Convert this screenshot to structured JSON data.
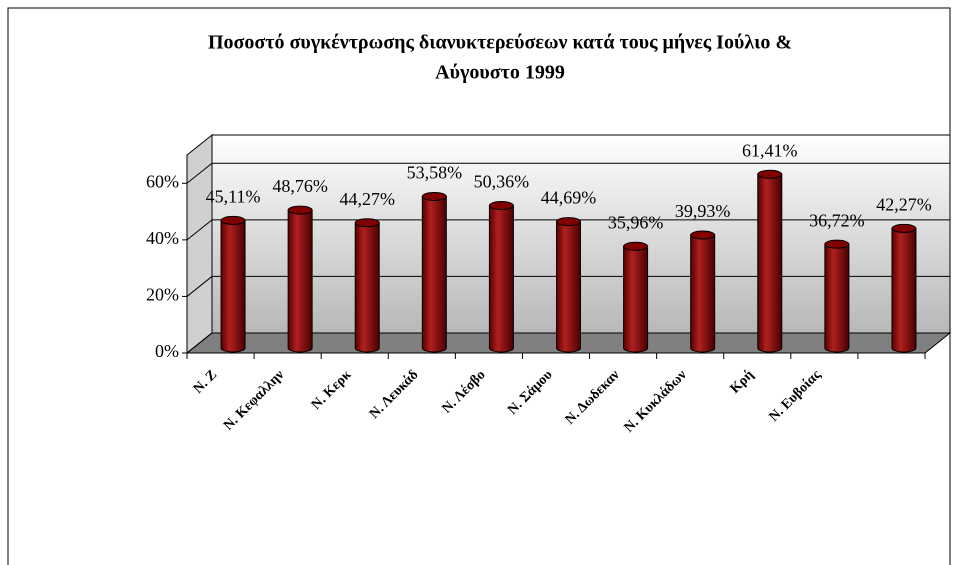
{
  "chart_data": {
    "type": "bar",
    "title": [
      "Ποσοστό συγκέντρωσης διανυκτερεύσεων  κατά τους μήνες Ιούλιο &",
      "Αύγουστο 1999"
    ],
    "categories": [
      "Ν. Ζ",
      "Ν. Κεφαλλην",
      "Ν. Κερκ",
      "Ν. Λευκάδ",
      "Ν. Λέσβο",
      "Ν. Σάμου",
      "Ν. Δωδεκαν",
      "Ν. Κυκλάδων",
      "Κρή",
      "Ν. Ευβοίας",
      null
    ],
    "values": [
      45.11,
      48.76,
      44.27,
      53.58,
      50.36,
      44.69,
      35.96,
      39.93,
      61.41,
      36.72,
      42.27
    ],
    "value_labels": [
      "45,11%",
      "48,76%",
      "44,27%",
      "53,58%",
      "50,36%",
      "44,69%",
      "35,96%",
      "39,93%",
      "61,41%",
      "36,72%",
      "42,27%"
    ],
    "color": "#800000",
    "ylim": [
      0,
      70
    ],
    "yticks": [
      {
        "value": 0,
        "label": "0%"
      },
      {
        "value": 20,
        "label": "20%"
      },
      {
        "value": 40,
        "label": "40%"
      },
      {
        "value": 60,
        "label": "60%"
      }
    ],
    "grid": true
  }
}
